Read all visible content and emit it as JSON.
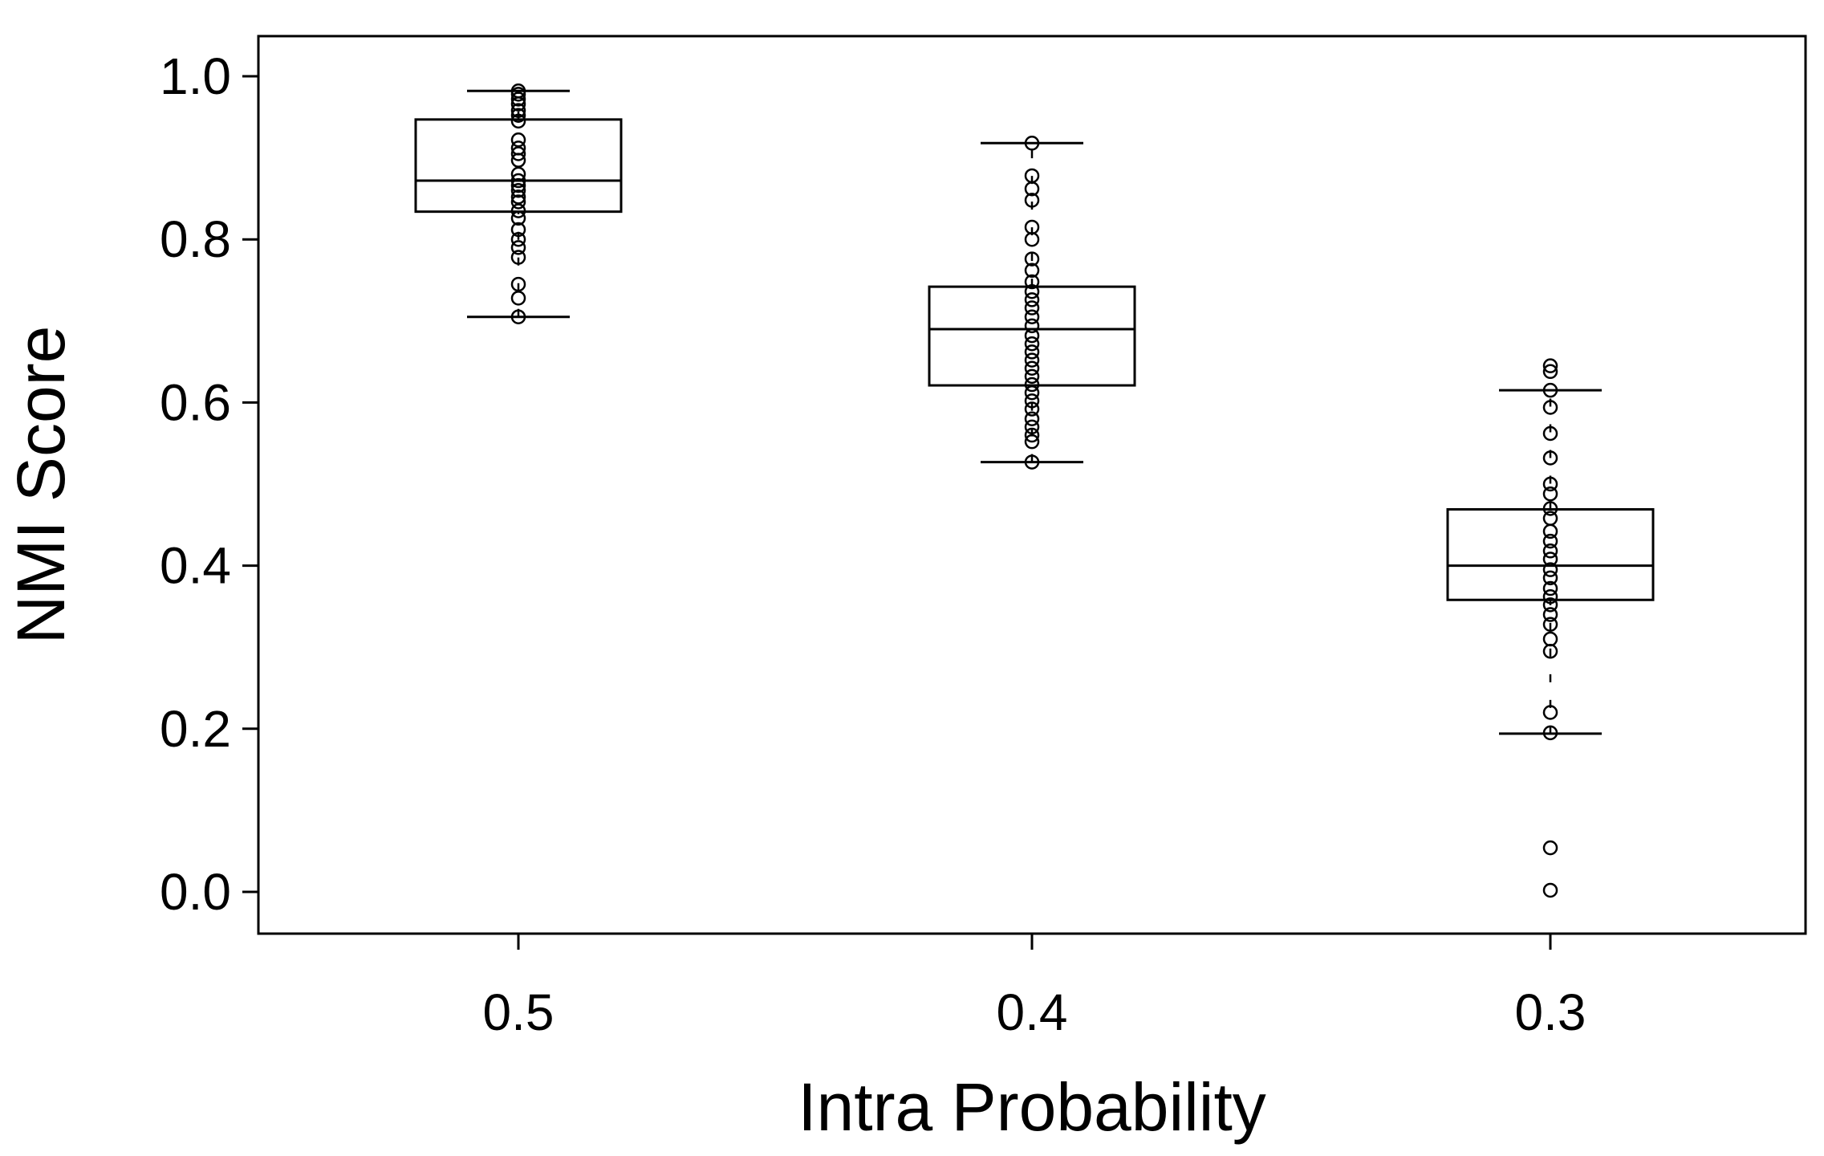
{
  "chart_data": {
    "type": "boxplot",
    "title": "",
    "xlabel": "Intra Probability",
    "ylabel": "NMI Score",
    "ylim": [
      -0.05,
      1.05
    ],
    "yticks": [
      "0.0",
      "0.2",
      "0.4",
      "0.6",
      "0.8",
      "1.0"
    ],
    "categories": [
      "0.5",
      "0.4",
      "0.3"
    ],
    "grid": false,
    "legend": "none",
    "boxes": [
      {
        "category": "0.5",
        "whisker_low": 0.705,
        "q1": 0.834,
        "median": 0.872,
        "q3": 0.947,
        "whisker_high": 0.982,
        "points": [
          0.982,
          0.978,
          0.972,
          0.966,
          0.958,
          0.952,
          0.945,
          0.922,
          0.912,
          0.905,
          0.897,
          0.88,
          0.872,
          0.866,
          0.86,
          0.852,
          0.846,
          0.835,
          0.826,
          0.812,
          0.8,
          0.79,
          0.778,
          0.745,
          0.728,
          0.705
        ]
      },
      {
        "category": "0.4",
        "whisker_low": 0.527,
        "q1": 0.621,
        "median": 0.69,
        "q3": 0.742,
        "whisker_high": 0.918,
        "points": [
          0.918,
          0.878,
          0.862,
          0.848,
          0.815,
          0.8,
          0.776,
          0.762,
          0.748,
          0.736,
          0.726,
          0.716,
          0.705,
          0.694,
          0.682,
          0.672,
          0.662,
          0.652,
          0.642,
          0.632,
          0.622,
          0.612,
          0.602,
          0.592,
          0.58,
          0.57,
          0.56,
          0.552,
          0.527
        ]
      },
      {
        "category": "0.3",
        "whisker_low": 0.194,
        "q1": 0.358,
        "median": 0.4,
        "q3": 0.469,
        "whisker_high": 0.615,
        "points": [
          0.645,
          0.638,
          0.615,
          0.594,
          0.562,
          0.532,
          0.5,
          0.488,
          0.47,
          0.458,
          0.442,
          0.43,
          0.418,
          0.408,
          0.395,
          0.385,
          0.372,
          0.362,
          0.352,
          0.34,
          0.328,
          0.31,
          0.295,
          0.22,
          0.195,
          0.054,
          0.002
        ]
      }
    ]
  }
}
